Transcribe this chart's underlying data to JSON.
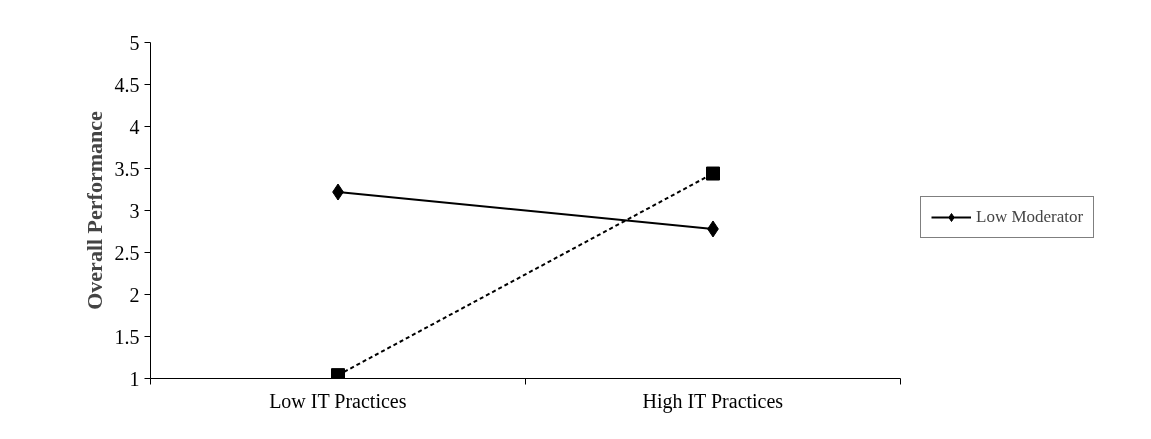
{
  "chart_data": {
    "type": "line",
    "ylabel": "Overall Performance",
    "categories": [
      "Low IT Practices",
      "High IT Practices"
    ],
    "series": [
      {
        "name": "Low Moderator",
        "color": "#000000",
        "values": [
          3.22,
          2.78
        ],
        "marker": "diamond",
        "line_style": "solid"
      },
      {
        "color": "#000000",
        "values": [
          1.04,
          3.44
        ],
        "marker": "square",
        "line_style": "dashed"
      }
    ],
    "ylim": [
      1,
      5
    ],
    "yticks": [
      1,
      1.5,
      2,
      2.5,
      3,
      3.5,
      4,
      4.5,
      5
    ],
    "grid": false,
    "legend": "right"
  }
}
